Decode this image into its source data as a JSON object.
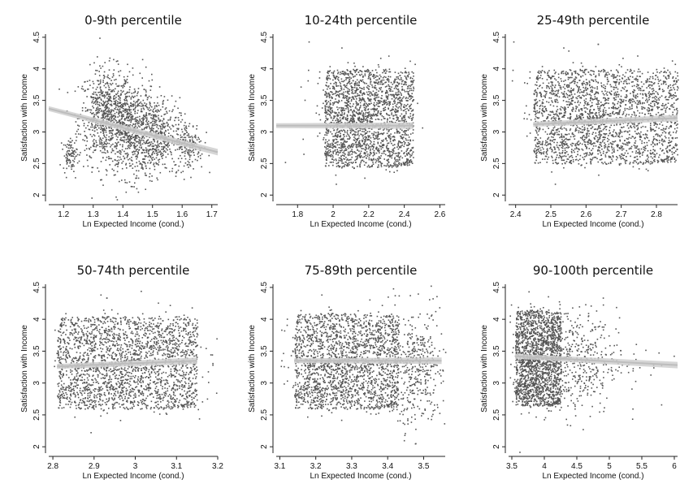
{
  "chart_data": [
    {
      "type": "scatter",
      "title": "0-9th percentile",
      "xlabel": "Ln Expected Income (cond.)",
      "ylabel": "Satisfaction with Income",
      "xlim": [
        1.15,
        1.72
      ],
      "ylim": [
        1.9,
        4.55
      ],
      "xticks": [
        "1.2",
        "1.3",
        "1.4",
        "1.5",
        "1.6",
        "1.7"
      ],
      "xtick_values": [
        1.2,
        1.3,
        1.4,
        1.5,
        1.6,
        1.7
      ],
      "yticks": [
        "2",
        "2.5",
        "3",
        "3.5",
        "4",
        "4.5"
      ],
      "ytick_values": [
        2,
        2.5,
        3,
        3.5,
        4,
        4.5
      ],
      "clusters": [
        {
          "cx": 1.34,
          "cy": 3.25,
          "sx": 0.045,
          "sy": 0.38,
          "n": 700
        },
        {
          "cx": 1.43,
          "cy": 3.05,
          "sx": 0.04,
          "sy": 0.38,
          "n": 600
        },
        {
          "cx": 1.51,
          "cy": 2.95,
          "sx": 0.04,
          "sy": 0.3,
          "n": 450
        },
        {
          "cx": 1.62,
          "cy": 2.8,
          "sx": 0.025,
          "sy": 0.2,
          "n": 180
        },
        {
          "cx": 1.22,
          "cy": 2.65,
          "sx": 0.012,
          "sy": 0.12,
          "n": 90
        }
      ],
      "fit": {
        "x": [
          1.15,
          1.72
        ],
        "y": [
          3.37,
          2.68
        ]
      }
    },
    {
      "type": "scatter",
      "title": "10-24th percentile",
      "xlabel": "Ln Expected Income (cond.)",
      "ylabel": "Satisfaction with Income",
      "xlim": [
        1.68,
        2.63
      ],
      "ylim": [
        1.9,
        4.55
      ],
      "xticks": [
        "1.8",
        "2",
        "2.2",
        "2.4",
        "2.6"
      ],
      "xtick_values": [
        1.8,
        2.0,
        2.2,
        2.4,
        2.6
      ],
      "yticks": [
        "2",
        "2.5",
        "3",
        "3.5",
        "4",
        "4.5"
      ],
      "ytick_values": [
        2,
        2.5,
        3,
        3.5,
        4,
        4.5
      ],
      "clusters": [
        {
          "cx": 2.13,
          "cy": 3.25,
          "sx": 0.13,
          "sy": 0.42,
          "n": 2200,
          "uniform": true,
          "x0": 1.95,
          "x1": 2.45,
          "y0": 2.45,
          "y1": 4.0
        }
      ],
      "fit": {
        "x": [
          1.68,
          2.45
        ],
        "y": [
          3.1,
          3.1
        ]
      }
    },
    {
      "type": "scatter",
      "title": "25-49th percentile",
      "xlabel": "Ln Expected Income (cond.)",
      "ylabel": "Satisfaction with Income",
      "xlim": [
        2.38,
        2.86
      ],
      "ylim": [
        1.9,
        4.55
      ],
      "xticks": [
        "2.4",
        "2.5",
        "2.6",
        "2.7",
        "2.8"
      ],
      "xtick_values": [
        2.4,
        2.5,
        2.6,
        2.7,
        2.8
      ],
      "yticks": [
        "2",
        "2.5",
        "3",
        "3.5",
        "4",
        "4.5"
      ],
      "ytick_values": [
        2,
        2.5,
        3,
        3.5,
        4,
        4.5
      ],
      "clusters": [
        {
          "cx": 2.6,
          "cy": 3.25,
          "sx": 0.1,
          "sy": 0.42,
          "n": 2400,
          "uniform": true,
          "x0": 2.45,
          "x1": 2.86,
          "y0": 2.5,
          "y1": 4.0
        }
      ],
      "fit": {
        "x": [
          2.45,
          2.86
        ],
        "y": [
          3.12,
          3.22
        ]
      }
    },
    {
      "type": "scatter",
      "title": "50-74th percentile",
      "xlabel": "Ln Expected Income (cond.)",
      "ylabel": "Satisfaction with Income",
      "xlim": [
        2.79,
        3.2
      ],
      "ylim": [
        1.9,
        4.55
      ],
      "xticks": [
        "2.8",
        "2.9",
        "3",
        "3.1",
        "3.2"
      ],
      "xtick_values": [
        2.8,
        2.9,
        3.0,
        3.1,
        3.2
      ],
      "yticks": [
        "2",
        "2.5",
        "3",
        "3.5",
        "4",
        "4.5"
      ],
      "ytick_values": [
        2,
        2.5,
        3,
        3.5,
        4,
        4.5
      ],
      "clusters": [
        {
          "cx": 2.98,
          "cy": 3.3,
          "sx": 0.1,
          "sy": 0.42,
          "n": 2400,
          "uniform": true,
          "x0": 2.81,
          "x1": 3.15,
          "y0": 2.6,
          "y1": 4.05
        }
      ],
      "fit": {
        "x": [
          2.81,
          3.15
        ],
        "y": [
          3.26,
          3.35
        ]
      }
    },
    {
      "type": "scatter",
      "title": "75-89th percentile",
      "xlabel": "Ln Expected Income (cond.)",
      "ylabel": "Satisfaction with Income",
      "xlim": [
        3.09,
        3.56
      ],
      "ylim": [
        1.9,
        4.55
      ],
      "xticks": [
        "3.1",
        "3.2",
        "3.3",
        "3.4",
        "3.5"
      ],
      "xtick_values": [
        3.1,
        3.2,
        3.3,
        3.4,
        3.5
      ],
      "yticks": [
        "2",
        "2.5",
        "3",
        "3.5",
        "4",
        "4.5"
      ],
      "ytick_values": [
        2,
        2.5,
        3,
        3.5,
        4,
        4.5
      ],
      "clusters": [
        {
          "cx": 3.28,
          "cy": 3.3,
          "sx": 0.1,
          "sy": 0.42,
          "n": 2100,
          "uniform": true,
          "x0": 3.14,
          "x1": 3.43,
          "y0": 2.6,
          "y1": 4.1
        },
        {
          "cx": 3.48,
          "cy": 3.25,
          "sx": 0.04,
          "sy": 0.45,
          "n": 400
        }
      ],
      "fit": {
        "x": [
          3.14,
          3.55
        ],
        "y": [
          3.35,
          3.35
        ]
      }
    },
    {
      "type": "scatter",
      "title": "90-100th percentile",
      "xlabel": "Ln Expected Income (cond.)",
      "ylabel": "Satisfaction with Income",
      "xlim": [
        3.45,
        6.05
      ],
      "ylim": [
        1.9,
        4.55
      ],
      "xticks": [
        "3.5",
        "4",
        "4.5",
        "5",
        "5.5",
        "6"
      ],
      "xtick_values": [
        3.5,
        4.0,
        4.5,
        5.0,
        5.5,
        6.0
      ],
      "yticks": [
        "2",
        "2.5",
        "3",
        "3.5",
        "4",
        "4.5"
      ],
      "ytick_values": [
        2,
        2.5,
        3,
        3.5,
        4,
        4.5
      ],
      "clusters": [
        {
          "cx": 3.95,
          "cy": 3.35,
          "sx": 0.3,
          "sy": 0.42,
          "n": 1900,
          "uniform": true,
          "x0": 3.55,
          "x1": 4.25,
          "y0": 2.65,
          "y1": 4.15
        },
        {
          "cx": 4.5,
          "cy": 3.35,
          "sx": 0.3,
          "sy": 0.42,
          "n": 350
        },
        {
          "cx": 5.1,
          "cy": 3.35,
          "sx": 0.4,
          "sy": 0.4,
          "n": 60
        }
      ],
      "fit": {
        "x": [
          3.55,
          6.05
        ],
        "y": [
          3.42,
          3.28
        ]
      }
    }
  ]
}
